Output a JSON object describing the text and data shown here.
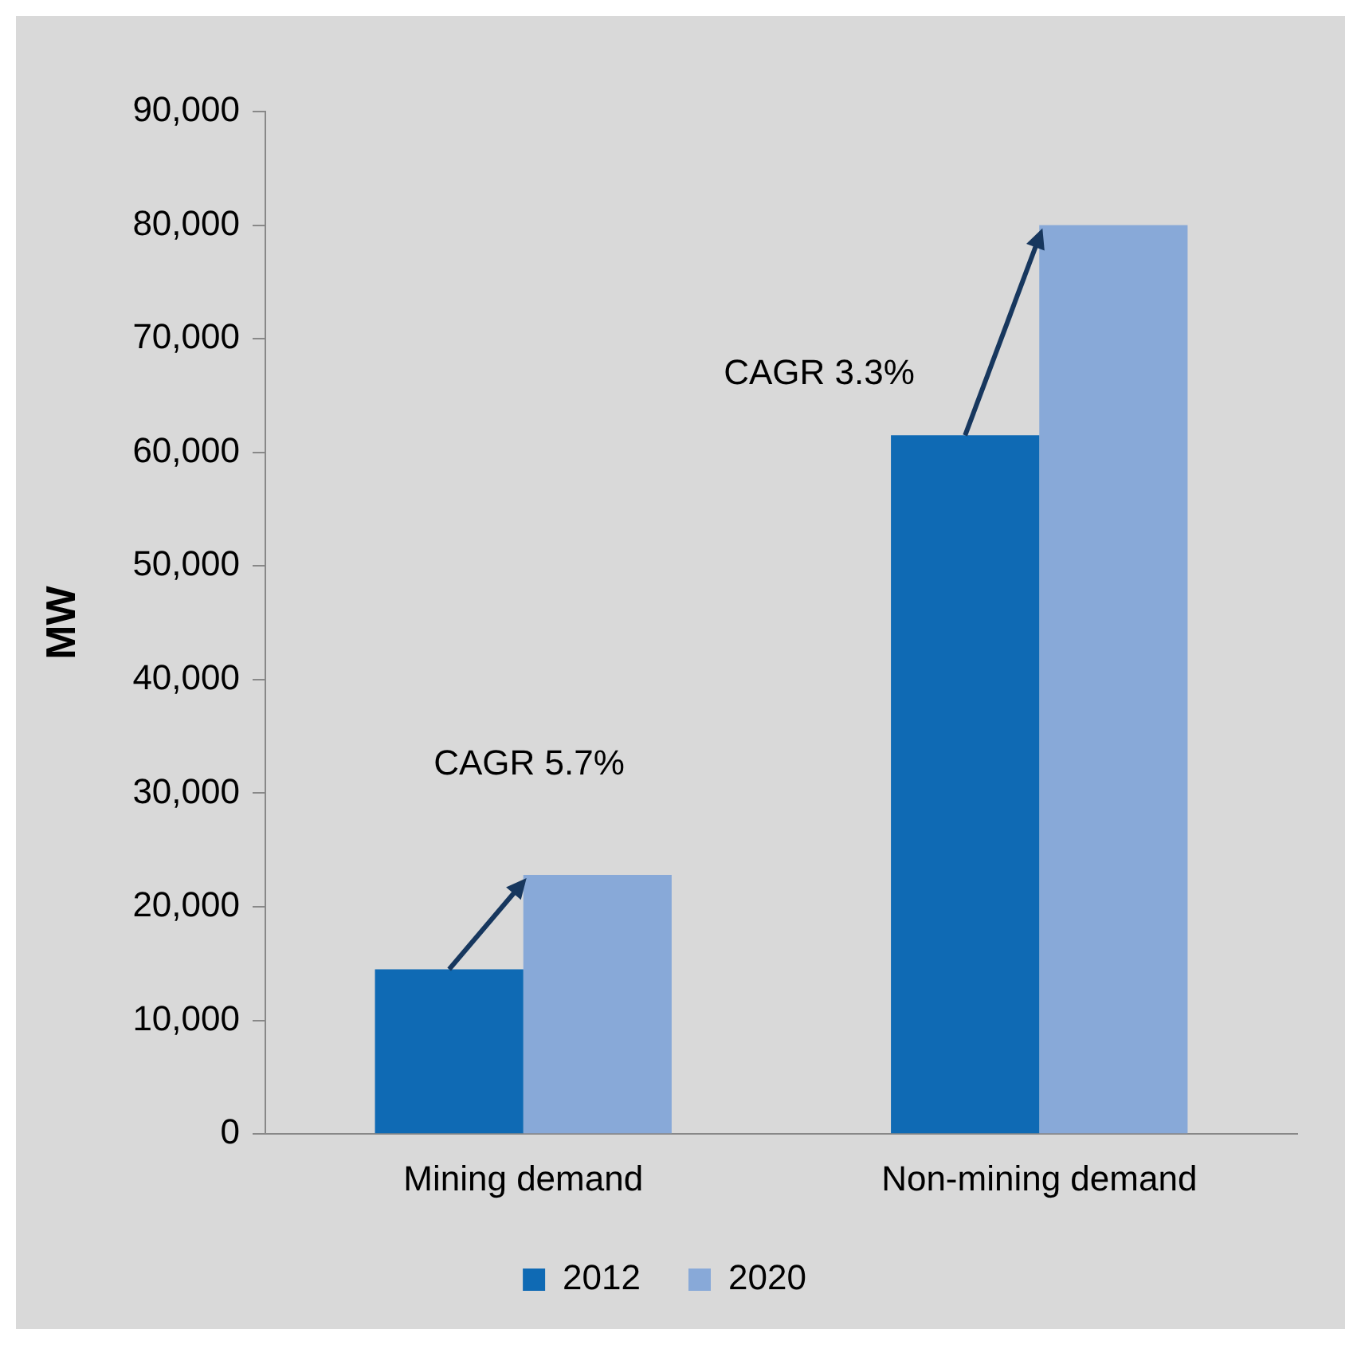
{
  "chart_data": {
    "type": "bar",
    "ylabel": "MW",
    "categories": [
      "Mining demand",
      "Non-mining demand"
    ],
    "series": [
      {
        "name": "2012",
        "color": "#0f6ab4",
        "values": [
          14500,
          61500
        ]
      },
      {
        "name": "2020",
        "color": "#88a9d8",
        "values": [
          22800,
          80000
        ]
      }
    ],
    "ylim": [
      0,
      90000
    ],
    "yticks": [
      0,
      {
        "value": 10000,
        "label": "10,000"
      },
      {
        "value": 20000,
        "label": "20,000"
      },
      {
        "value": 30000,
        "label": "30,000"
      },
      {
        "value": 40000,
        "label": "40,000"
      },
      {
        "value": 50000,
        "label": "50,000"
      },
      {
        "value": 60000,
        "label": "60,000"
      },
      {
        "value": 70000,
        "label": "70,000"
      },
      {
        "value": 80000,
        "label": "80,000"
      },
      {
        "value": 90000,
        "label": "90,000"
      }
    ],
    "grid": false,
    "legend": "bottom",
    "annotations": [
      "CAGR 5.7%",
      "CAGR 3.3%"
    ]
  }
}
